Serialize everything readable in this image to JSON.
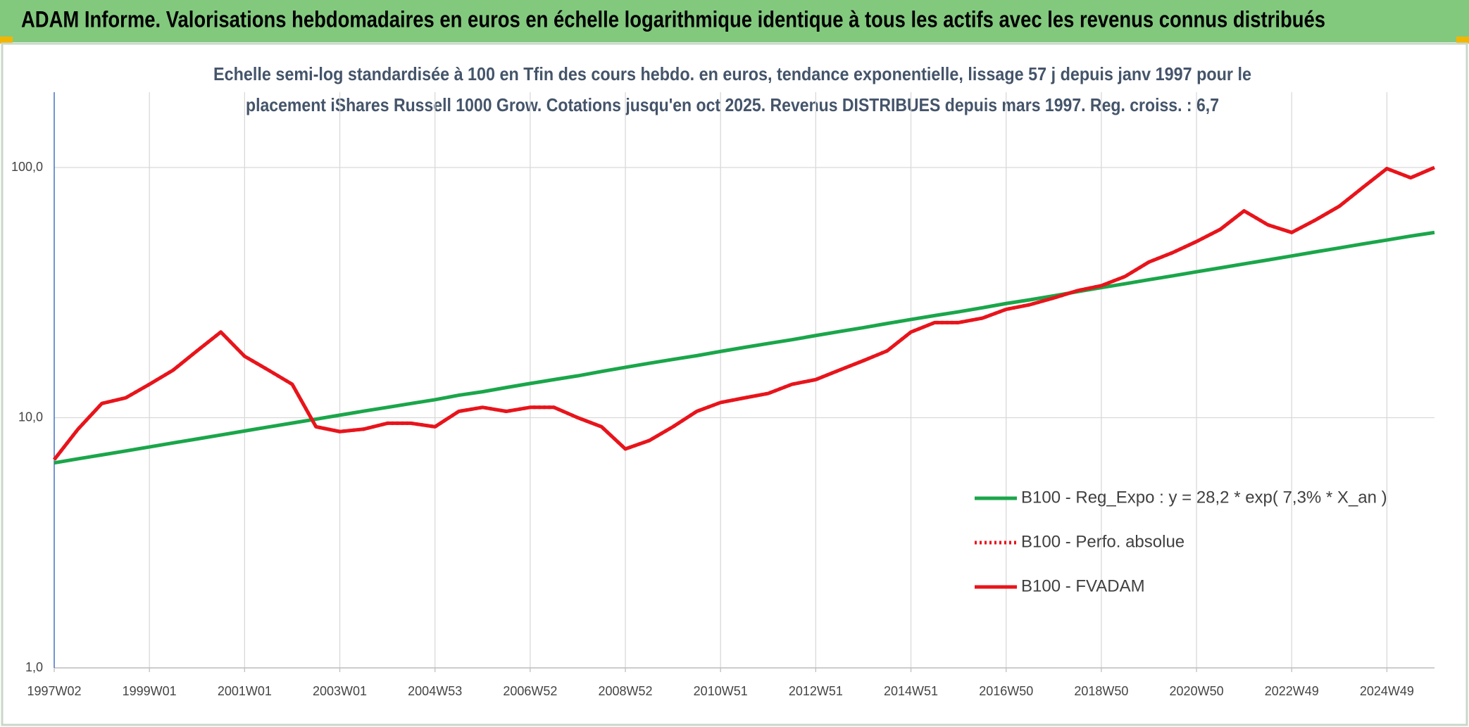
{
  "header": {
    "title": "ADAM Informe. Valorisations hebdomadaires en euros en échelle logarithmique identique à tous les actifs avec les revenus connus distribués"
  },
  "chart_data": {
    "type": "line",
    "title": [
      "Echelle semi-log standardisée à 100 en Tfin des cours hebdo. en euros, tendance exponentielle, lissage 57 j depuis janv 1997 pour le",
      "placement iShares Russell 1000 Grow. Cotations jusqu'en oct 2025. Revenus DISTRIBUES depuis mars 1997. Reg. croiss. : 6,7"
    ],
    "categories": [
      "1997W02",
      null,
      null,
      null,
      "1999W01",
      null,
      null,
      null,
      "2001W01",
      null,
      null,
      null,
      "2003W01",
      null,
      null,
      null,
      "2004W53",
      null,
      null,
      null,
      "2006W52",
      null,
      null,
      null,
      "2008W52",
      null,
      null,
      null,
      "2010W51",
      null,
      null,
      null,
      "2012W51",
      null,
      null,
      null,
      "2014W51",
      null,
      null,
      null,
      "2016W50",
      null,
      null,
      null,
      "2018W50",
      null,
      null,
      null,
      "2020W50",
      null,
      null,
      null,
      "2022W49",
      null,
      null,
      null,
      "2024W49",
      null,
      null
    ],
    "series": [
      {
        "name": "B100 - Reg_Expo : y = 28,2 * exp( 7,3% *  X_an )",
        "color": "#1aa64a",
        "dash": "solid",
        "values": [
          6.6,
          6.85,
          7.1,
          7.36,
          7.64,
          7.93,
          8.22,
          8.53,
          8.85,
          9.18,
          9.52,
          9.87,
          10.24,
          10.62,
          11.0,
          11.4,
          11.8,
          12.3,
          12.7,
          13.2,
          13.7,
          14.2,
          14.7,
          15.3,
          15.9,
          16.5,
          17.1,
          17.7,
          18.4,
          19.1,
          19.8,
          20.5,
          21.3,
          22.1,
          22.9,
          23.8,
          24.7,
          25.6,
          26.5,
          27.5,
          28.6,
          29.6,
          30.7,
          31.9,
          33.1,
          34.3,
          35.6,
          36.9,
          38.3,
          39.7,
          41.2,
          42.7,
          44.3,
          46.0,
          47.7,
          49.5,
          51.3,
          53.2,
          55.0
        ]
      },
      {
        "name": "B100 - Perfo. absolue",
        "color": "#e8141b",
        "dash": "dotted",
        "values": [
          6.8,
          9.0,
          11.4,
          12.0,
          13.6,
          15.5,
          18.5,
          22.0,
          17.6,
          15.5,
          13.6,
          9.2,
          8.8,
          9.0,
          9.5,
          9.5,
          9.2,
          10.6,
          11.0,
          10.6,
          11.0,
          11.0,
          10.0,
          9.2,
          7.5,
          8.1,
          9.2,
          10.6,
          11.5,
          12.0,
          12.5,
          13.6,
          14.2,
          15.5,
          16.9,
          18.5,
          22.0,
          24.0,
          24.0,
          25.0,
          27.1,
          28.3,
          30.1,
          32.2,
          33.7,
          36.7,
          41.9,
          45.7,
          50.6,
          56.6,
          67.1,
          59.0,
          55.0,
          61.7,
          70.0,
          83.4,
          99.0,
          91.0,
          100.0
        ]
      },
      {
        "name": "B100 - FVADAM",
        "color": "#e8141b",
        "dash": "solid",
        "values": [
          6.8,
          9.0,
          11.4,
          12.0,
          13.6,
          15.5,
          18.5,
          22.0,
          17.6,
          15.5,
          13.6,
          9.2,
          8.8,
          9.0,
          9.5,
          9.5,
          9.2,
          10.6,
          11.0,
          10.6,
          11.0,
          11.0,
          10.0,
          9.2,
          7.5,
          8.1,
          9.2,
          10.6,
          11.5,
          12.0,
          12.5,
          13.6,
          14.2,
          15.5,
          16.9,
          18.5,
          22.0,
          24.0,
          24.0,
          25.0,
          27.1,
          28.3,
          30.1,
          32.2,
          33.7,
          36.7,
          41.9,
          45.7,
          50.6,
          56.6,
          67.1,
          59.0,
          55.0,
          61.7,
          70.0,
          83.4,
          99.0,
          91.0,
          100.0
        ]
      }
    ],
    "ylim": [
      1,
      200
    ],
    "yticks": [
      {
        "value": 1,
        "label": "1,0"
      },
      {
        "value": 10,
        "label": "10,0"
      },
      {
        "value": 100,
        "label": "100,0"
      }
    ],
    "log_y": true,
    "grid": true,
    "legend": "right"
  }
}
